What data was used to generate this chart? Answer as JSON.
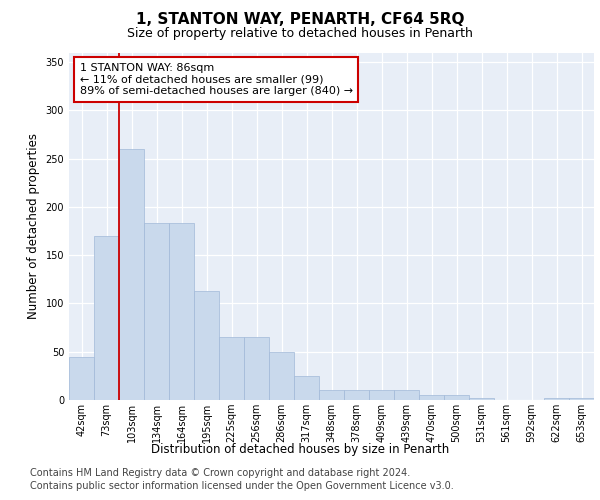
{
  "title": "1, STANTON WAY, PENARTH, CF64 5RQ",
  "subtitle": "Size of property relative to detached houses in Penarth",
  "xlabel": "Distribution of detached houses by size in Penarth",
  "ylabel": "Number of detached properties",
  "categories": [
    "42sqm",
    "73sqm",
    "103sqm",
    "134sqm",
    "164sqm",
    "195sqm",
    "225sqm",
    "256sqm",
    "286sqm",
    "317sqm",
    "348sqm",
    "378sqm",
    "409sqm",
    "439sqm",
    "470sqm",
    "500sqm",
    "531sqm",
    "561sqm",
    "592sqm",
    "622sqm",
    "653sqm"
  ],
  "values": [
    45,
    170,
    260,
    183,
    183,
    113,
    65,
    65,
    50,
    25,
    10,
    10,
    10,
    10,
    5,
    5,
    2,
    0,
    0,
    2,
    2
  ],
  "bar_color": "#c9d9ec",
  "bar_edge_color": "#a0b8d8",
  "property_line_x": 1.5,
  "property_line_color": "#cc0000",
  "annotation_text": "1 STANTON WAY: 86sqm\n← 11% of detached houses are smaller (99)\n89% of semi-detached houses are larger (840) →",
  "annotation_box_color": "#cc0000",
  "ylim": [
    0,
    360
  ],
  "yticks": [
    0,
    50,
    100,
    150,
    200,
    250,
    300,
    350
  ],
  "background_color": "#e8eef7",
  "footer_line1": "Contains HM Land Registry data © Crown copyright and database right 2024.",
  "footer_line2": "Contains public sector information licensed under the Open Government Licence v3.0.",
  "title_fontsize": 11,
  "subtitle_fontsize": 9,
  "annotation_fontsize": 8,
  "tick_fontsize": 7,
  "label_fontsize": 8.5,
  "footer_fontsize": 7
}
